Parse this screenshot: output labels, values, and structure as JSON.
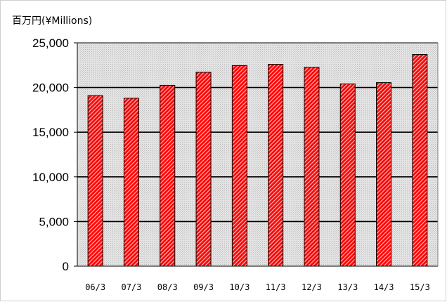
{
  "chart_data": {
    "type": "bar",
    "unit_label": "百万円(¥Millions)",
    "categories": [
      "06/3",
      "07/3",
      "08/3",
      "09/3",
      "10/3",
      "11/3",
      "12/3",
      "13/3",
      "14/3",
      "15/3"
    ],
    "values": [
      19100,
      18800,
      20250,
      21700,
      22450,
      22600,
      22250,
      20400,
      20550,
      23700
    ],
    "ylim": [
      0,
      25000
    ],
    "yticks": [
      0,
      5000,
      10000,
      15000,
      20000,
      25000
    ],
    "ytick_labels": [
      "0",
      "5,000",
      "10,000",
      "15,000",
      "20,000",
      "25,000"
    ],
    "grid": true,
    "colors": {
      "bar_fill": "#ff0000",
      "bar_hatch": "#ffb0b0",
      "plot_bg": "#d9d9d9",
      "grid": "#000000"
    }
  }
}
